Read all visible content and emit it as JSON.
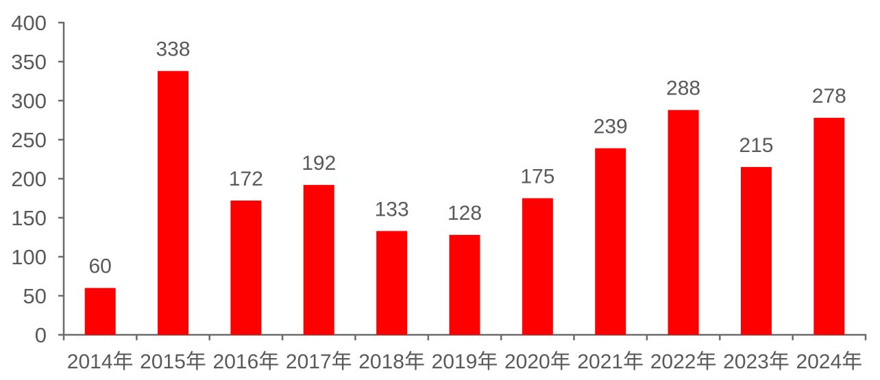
{
  "chart_data": {
    "type": "bar",
    "categories": [
      "2014年",
      "2015年",
      "2016年",
      "2017年",
      "2018年",
      "2019年",
      "2020年",
      "2021年",
      "2022年",
      "2023年",
      "2024年"
    ],
    "values": [
      60,
      338,
      172,
      192,
      133,
      128,
      175,
      239,
      288,
      215,
      278
    ],
    "series_name": "",
    "title": "",
    "xlabel": "",
    "ylabel": "",
    "ylim": [
      0,
      400
    ],
    "ytick_step": 50,
    "yticks": [
      0,
      50,
      100,
      150,
      200,
      250,
      300,
      350,
      400
    ],
    "data_labels_shown": true,
    "grid": false,
    "legend_position": "none",
    "colors": {
      "bar_fill": "#ff0000",
      "label_text": "#595959",
      "tick_text": "#595959",
      "axis_line": "#6a6a6a",
      "background": "#ffffff"
    }
  }
}
